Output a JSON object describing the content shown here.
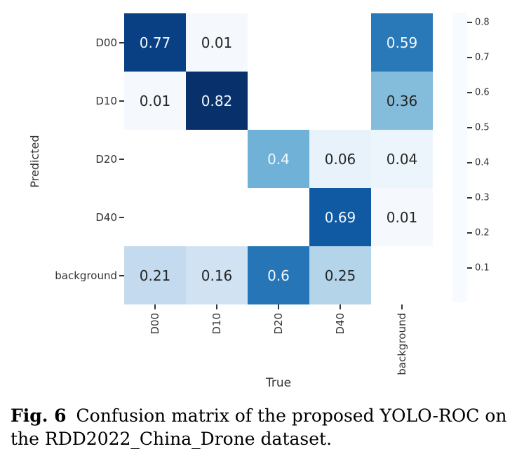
{
  "chart_data": {
    "type": "heatmap",
    "title": "",
    "xlabel": "True",
    "ylabel": "Predicted",
    "x_categories": [
      "D00",
      "D10",
      "D20",
      "D40",
      "background"
    ],
    "y_categories": [
      "D00",
      "D10",
      "D20",
      "D40",
      "background"
    ],
    "matrix": [
      [
        0.77,
        0.01,
        null,
        null,
        0.59
      ],
      [
        0.01,
        0.82,
        null,
        null,
        0.36
      ],
      [
        null,
        null,
        0.4,
        0.06,
        0.04
      ],
      [
        null,
        null,
        null,
        0.69,
        0.01
      ],
      [
        0.21,
        0.16,
        0.6,
        0.25,
        null
      ]
    ],
    "vmin": 0,
    "vmax": 0.82,
    "grid": false,
    "colormap": "Blues",
    "colorbar": {
      "position": "right",
      "ticks": [
        0.8,
        0.7,
        0.6,
        0.5,
        0.4,
        0.3,
        0.2,
        0.1
      ]
    },
    "colors": {
      "cmap_stops": [
        "#f7fbff",
        "#deebf7",
        "#c6dbef",
        "#9ecae1",
        "#6baed6",
        "#4292c6",
        "#2171b5",
        "#08519c",
        "#08306b"
      ],
      "empty_cell": "#ffffff",
      "annotation_light": "#f2f8fd",
      "annotation_dark": "#262626",
      "axis_text": "#333333"
    }
  },
  "caption": {
    "label": "Fig. 6",
    "text": "Confusion matrix of the proposed YOLO-ROC on the RDD2022_China_Drone dataset."
  }
}
